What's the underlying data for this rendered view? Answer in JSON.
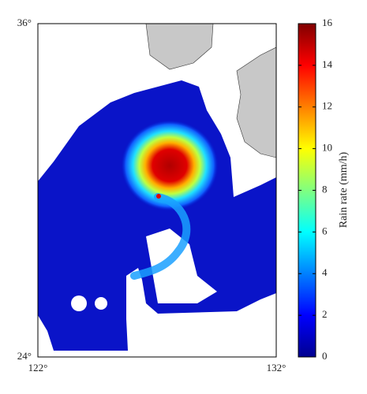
{
  "map": {
    "lonlim": [
      122,
      132
    ],
    "latlim": [
      24,
      36
    ],
    "lat_ticks": [
      {
        "value": 36,
        "label": "36°"
      },
      {
        "value": 24,
        "label": "24°"
      }
    ],
    "lon_ticks": [
      {
        "value": 122,
        "label": "122°"
      },
      {
        "value": 132,
        "label": "132°"
      }
    ]
  },
  "colorbar": {
    "label": "Rain rate (mm/h)",
    "lim": [
      0,
      16
    ],
    "ticks": [
      0,
      2,
      4,
      6,
      8,
      10,
      12,
      14,
      16
    ],
    "colormap": "jet"
  }
}
